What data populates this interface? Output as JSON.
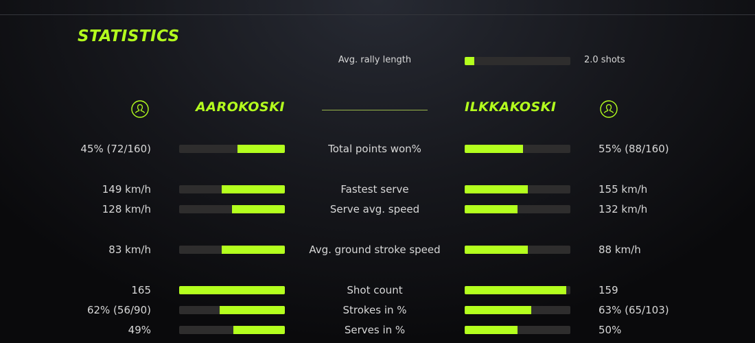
{
  "title": "STATISTICS",
  "accent_color": "#b4ff1e",
  "avg_rally": {
    "label": "Avg. rally length",
    "value": "2.0 shots",
    "fill": 0.09
  },
  "players": {
    "left": {
      "name": "AAROKOSKI",
      "icon": "user-icon"
    },
    "right": {
      "name": "ILKKAKOSKI",
      "icon": "user-icon"
    }
  },
  "stats": [
    {
      "label": "Total points won%",
      "left": "45% (72/160)",
      "right": "55% (88/160)",
      "left_fill": 0.45,
      "right_fill": 0.55
    },
    {
      "label": "Fastest serve",
      "left": "149 km/h",
      "right": "155 km/h",
      "left_fill": 0.6,
      "right_fill": 0.6
    },
    {
      "label": "Serve avg. speed",
      "left": "128 km/h",
      "right": "132 km/h",
      "left_fill": 0.5,
      "right_fill": 0.5
    },
    {
      "label": "Avg. ground stroke speed",
      "left": "83 km/h",
      "right": "88 km/h",
      "left_fill": 0.6,
      "right_fill": 0.6
    },
    {
      "label": "Shot count",
      "left": "165",
      "right": "159",
      "left_fill": 1.0,
      "right_fill": 0.96
    },
    {
      "label": "Strokes in %",
      "left": "62% (56/90)",
      "right": "63% (65/103)",
      "left_fill": 0.62,
      "right_fill": 0.63
    },
    {
      "label": "Serves in %",
      "left": "49%",
      "right": "50%",
      "left_fill": 0.49,
      "right_fill": 0.5
    }
  ]
}
